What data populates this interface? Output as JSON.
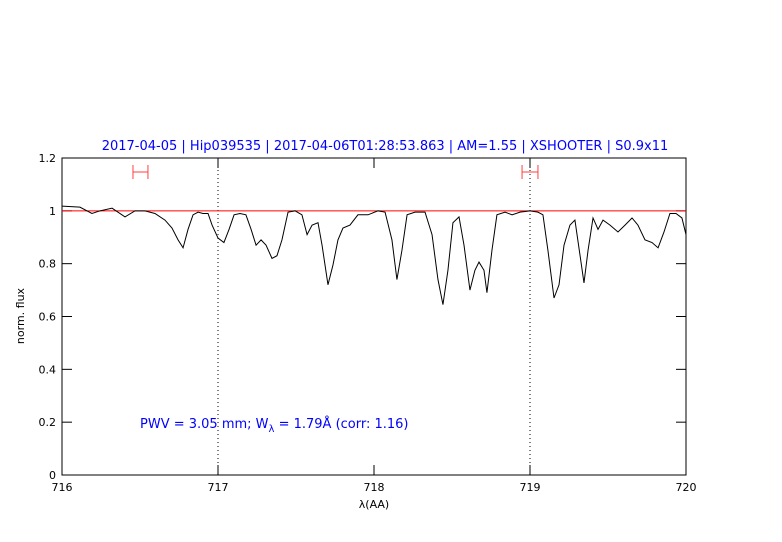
{
  "chart_data": {
    "type": "line",
    "title": "2017-04-05 | Hip039535 | 2017-04-06T01:28:53.863 | AM=1.55 | XSHOOTER | S0.9x11",
    "x_label": "λ(AA)",
    "y_label": "norm. flux",
    "annotation": [
      "PWV = 3.05 mm; W",
      "λ",
      " = 1.79Å (corr: 1.16)"
    ],
    "annotation_color": "#0000ff",
    "xlim": [
      716,
      720
    ],
    "xticks": [
      716,
      717,
      718,
      719,
      720
    ],
    "ylim": [
      0,
      1.2
    ],
    "yticks": [
      0,
      0.2,
      0.4,
      0.6,
      0.8,
      1,
      1.2
    ],
    "color": "#000000",
    "x": [
      716.0,
      716.115,
      716.192,
      716.244,
      716.321,
      716.404,
      716.468,
      716.532,
      716.596,
      716.66,
      716.705,
      716.744,
      716.776,
      716.808,
      716.84,
      716.872,
      716.904,
      716.936,
      716.962,
      717.0,
      717.038,
      717.071,
      717.103,
      717.141,
      717.179,
      717.212,
      717.244,
      717.276,
      717.308,
      717.346,
      717.378,
      717.41,
      717.449,
      717.494,
      717.538,
      717.571,
      717.603,
      717.641,
      717.667,
      717.705,
      717.737,
      717.769,
      717.801,
      717.846,
      717.897,
      717.962,
      718.026,
      718.071,
      718.115,
      718.147,
      718.179,
      718.212,
      718.263,
      718.327,
      718.372,
      718.41,
      718.442,
      718.474,
      718.506,
      718.545,
      718.577,
      718.615,
      718.647,
      718.673,
      718.705,
      718.724,
      718.756,
      718.788,
      718.84,
      718.885,
      718.936,
      719.0,
      719.051,
      719.083,
      719.115,
      719.154,
      719.186,
      719.218,
      719.256,
      719.288,
      719.321,
      719.346,
      719.372,
      719.404,
      719.436,
      719.468,
      719.513,
      719.564,
      719.609,
      719.654,
      719.692,
      719.737,
      719.782,
      719.821,
      719.859,
      719.897,
      719.936,
      719.974,
      720.0
    ],
    "values": [
      1.018,
      1.014,
      0.99,
      1.0,
      1.01,
      0.977,
      1.0,
      1.0,
      0.99,
      0.965,
      0.935,
      0.89,
      0.86,
      0.93,
      0.985,
      0.995,
      0.99,
      0.99,
      0.946,
      0.897,
      0.88,
      0.93,
      0.985,
      0.99,
      0.985,
      0.93,
      0.87,
      0.89,
      0.87,
      0.82,
      0.83,
      0.89,
      0.995,
      1.0,
      0.985,
      0.91,
      0.946,
      0.955,
      0.87,
      0.72,
      0.795,
      0.89,
      0.935,
      0.946,
      0.985,
      0.985,
      1.0,
      0.995,
      0.89,
      0.74,
      0.85,
      0.985,
      0.995,
      0.995,
      0.91,
      0.74,
      0.645,
      0.775,
      0.955,
      0.977,
      0.87,
      0.7,
      0.775,
      0.806,
      0.775,
      0.69,
      0.85,
      0.985,
      0.995,
      0.985,
      0.995,
      1.0,
      0.995,
      0.985,
      0.85,
      0.67,
      0.72,
      0.87,
      0.946,
      0.965,
      0.83,
      0.727,
      0.85,
      0.973,
      0.93,
      0.965,
      0.946,
      0.92,
      0.946,
      0.973,
      0.946,
      0.89,
      0.88,
      0.86,
      0.92,
      0.99,
      0.99,
      0.973,
      0.91
    ],
    "continuum": 1,
    "continuum_color": "#ff0000",
    "ranges": [
      [
        716.455,
        716.551
      ],
      [
        718.949,
        719.051
      ]
    ],
    "range_y": 1.147,
    "range_color": "#ff4040",
    "vlines": [
      717,
      719
    ]
  }
}
